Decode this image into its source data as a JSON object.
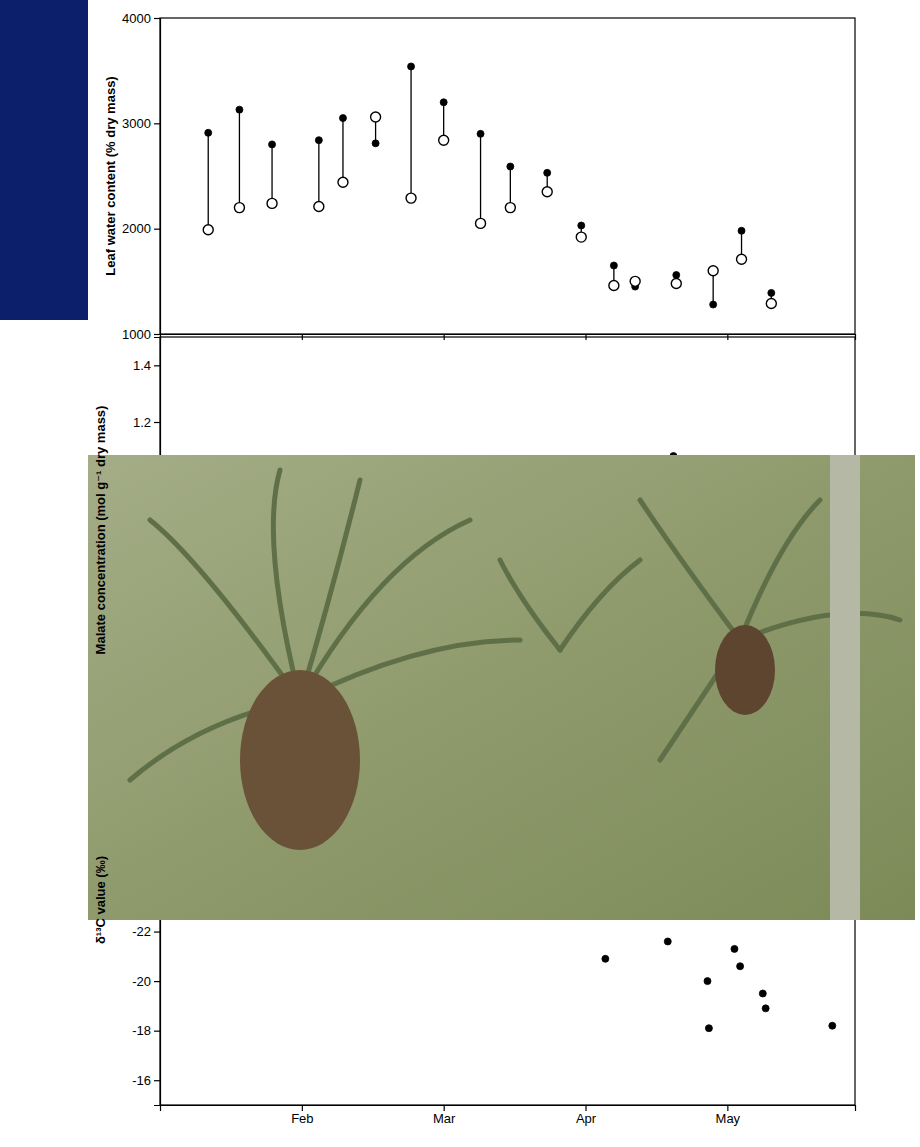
{
  "chart_data": [
    {
      "type": "scatter",
      "ylabel": "Leaf water content (% dry mass)",
      "x": [
        1.84,
        2.06,
        2.29,
        2.62,
        2.79,
        3.02,
        3.27,
        3.5,
        3.76,
        3.97,
        4.23,
        4.47,
        4.7,
        4.85,
        5.14,
        5.4,
        5.6,
        5.81
      ],
      "series": [
        {
          "marker": "filled-circle",
          "color": "#000000",
          "values": [
            2910,
            3130,
            2800,
            2840,
            3050,
            2810,
            3540,
            3200,
            2900,
            2590,
            2530,
            2030,
            1650,
            1450,
            1560,
            1280,
            1980,
            1390
          ]
        },
        {
          "marker": "open-circle",
          "color": "#000000",
          "values": [
            1990,
            2200,
            2240,
            2210,
            2440,
            3060,
            2290,
            2840,
            2050,
            2200,
            2350,
            1920,
            1460,
            1500,
            1480,
            1600,
            1710,
            1290
          ]
        }
      ],
      "xlim": [
        1.5,
        6.4
      ],
      "xticks": [
        {
          "value": 2.5,
          "label": "Feb"
        },
        {
          "value": 3.5,
          "label": "Mar"
        },
        {
          "value": 4.5,
          "label": "Apr"
        },
        {
          "value": 5.5,
          "label": "May"
        }
      ],
      "ylim": [
        1000,
        4000
      ],
      "yticks": [
        1000,
        2000,
        3000,
        4000
      ],
      "tick_labels": "y"
    },
    {
      "type": "scatter",
      "ylabel": "Malate concentration (mol g⁻¹ dry mass)",
      "x": [
        5.12
      ],
      "series": [
        {
          "marker": "filled-circle",
          "color": "#000000",
          "values": [
            1.08
          ]
        }
      ],
      "xlim": [
        1.5,
        6.4
      ],
      "xticks": [
        {
          "value": 2.5,
          "label": "Feb"
        },
        {
          "value": 3.5,
          "label": "Mar"
        },
        {
          "value": 4.5,
          "label": "Apr"
        },
        {
          "value": 5.5,
          "label": "May"
        }
      ],
      "ylim": [
        0,
        1.5
      ],
      "yticks": [
        1.2,
        1.4
      ],
      "tick_labels": "y"
    },
    {
      "type": "scatter",
      "ylabel": "δ¹³C value (‰)",
      "x": [
        4.64,
        5.08,
        5.36,
        5.37,
        5.55,
        5.59,
        5.75,
        5.77,
        6.24
      ],
      "series": [
        {
          "marker": "filled-circle",
          "color": "#000000",
          "values": [
            -20.9,
            -21.6,
            -20.0,
            -18.1,
            -21.3,
            -20.6,
            -19.5,
            -18.9,
            -18.2
          ]
        }
      ],
      "xlim": [
        1.5,
        6.4
      ],
      "xticks": [
        {
          "value": 2.5,
          "label": "Feb"
        },
        {
          "value": 3.5,
          "label": "Mar"
        },
        {
          "value": 4.5,
          "label": "Apr"
        },
        {
          "value": 5.5,
          "label": "May"
        }
      ],
      "ylim": [
        -15,
        -24
      ],
      "yticks": [
        -16,
        -18,
        -20,
        -22
      ]
    }
  ]
}
